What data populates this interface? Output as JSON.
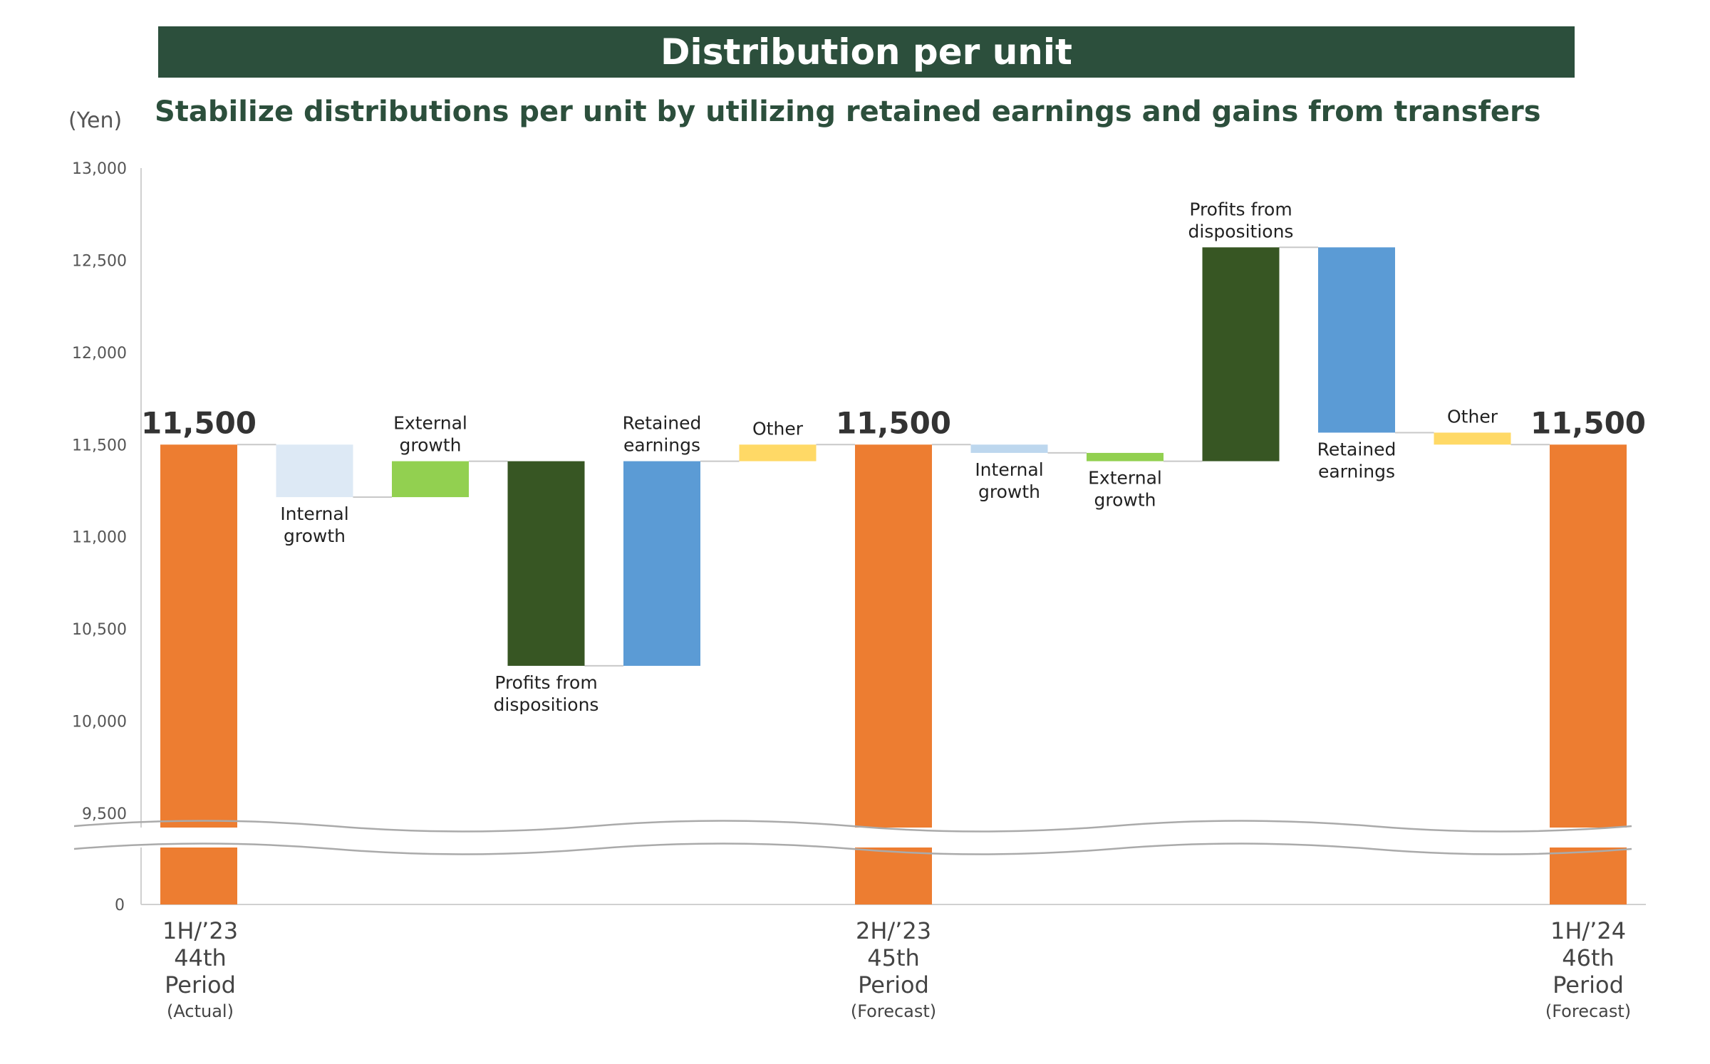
{
  "header": {
    "title": "Distribution per unit"
  },
  "subtitle": "Stabilize distributions per unit by utilizing retained earnings and gains from transfers",
  "y_unit": "(Yen)",
  "chart_data": {
    "type": "waterfall",
    "ylim": [
      9500,
      13000
    ],
    "yticks": [
      9500,
      10000,
      10500,
      11000,
      11500,
      12000,
      12500,
      13000
    ],
    "ytick_labels": [
      "9,500",
      "10,000",
      "10,500",
      "11,000",
      "11,500",
      "12,000",
      "12,500",
      "13,000"
    ],
    "axis_break": {
      "below": 9500,
      "bottom_label": "0"
    },
    "grid": false,
    "legend": "none",
    "colors": {
      "total": "#ed7d31",
      "internal_growth": "#dde9f5",
      "internal_growth_2": "#bdd7ee",
      "external_growth": "#92d050",
      "dispositions": "#375623",
      "retained": "#5b9bd5",
      "other": "#ffd966"
    },
    "bars": [
      {
        "kind": "total",
        "label": "",
        "value_label": "11,500",
        "start": 0,
        "end": 11500,
        "color": "total"
      },
      {
        "kind": "delta",
        "label": [
          "Internal",
          "growth"
        ],
        "label_pos": "below",
        "start": 11500,
        "end": 11215,
        "color": "internal_growth"
      },
      {
        "kind": "delta",
        "label": [
          "External",
          "growth"
        ],
        "label_pos": "above",
        "start": 11215,
        "end": 11410,
        "color": "external_growth"
      },
      {
        "kind": "delta",
        "label": [
          "Profits from",
          "dispositions"
        ],
        "label_pos": "below",
        "start": 11410,
        "end": 10300,
        "color": "dispositions"
      },
      {
        "kind": "delta",
        "label": [
          "Retained",
          "earnings"
        ],
        "label_pos": "above",
        "start": 10300,
        "end": 11410,
        "color": "retained"
      },
      {
        "kind": "delta",
        "label": [
          "Other"
        ],
        "label_pos": "above",
        "start": 11410,
        "end": 11500,
        "color": "other"
      },
      {
        "kind": "total",
        "label": "",
        "value_label": "11,500",
        "start": 0,
        "end": 11500,
        "color": "total"
      },
      {
        "kind": "delta",
        "label": [
          "Internal",
          "growth"
        ],
        "label_pos": "below",
        "start": 11500,
        "end": 11455,
        "color": "internal_growth_2"
      },
      {
        "kind": "delta",
        "label": [
          "External",
          "growth"
        ],
        "label_pos": "below",
        "start": 11455,
        "end": 11410,
        "color": "external_growth"
      },
      {
        "kind": "delta",
        "label": [
          "Profits from",
          "dispositions"
        ],
        "label_pos": "above",
        "start": 11410,
        "end": 12570,
        "color": "dispositions"
      },
      {
        "kind": "delta",
        "label": [
          "Retained",
          "earnings"
        ],
        "label_pos": "below",
        "start": 12570,
        "end": 11565,
        "color": "retained"
      },
      {
        "kind": "delta",
        "label": [
          "Other"
        ],
        "label_pos": "above",
        "start": 11565,
        "end": 11500,
        "color": "other"
      },
      {
        "kind": "total",
        "label": "",
        "value_label": "11,500",
        "start": 0,
        "end": 11500,
        "color": "total"
      }
    ],
    "x_groups": [
      {
        "bar_index": 0,
        "lines": [
          "1H/’23",
          "44th",
          "Period"
        ],
        "note": "(Actual)"
      },
      {
        "bar_index": 6,
        "lines": [
          "2H/’23",
          "45th",
          "Period"
        ],
        "note": "(Forecast)"
      },
      {
        "bar_index": 12,
        "lines": [
          "1H/’24",
          "46th",
          "Period"
        ],
        "note": "(Forecast)"
      }
    ]
  }
}
